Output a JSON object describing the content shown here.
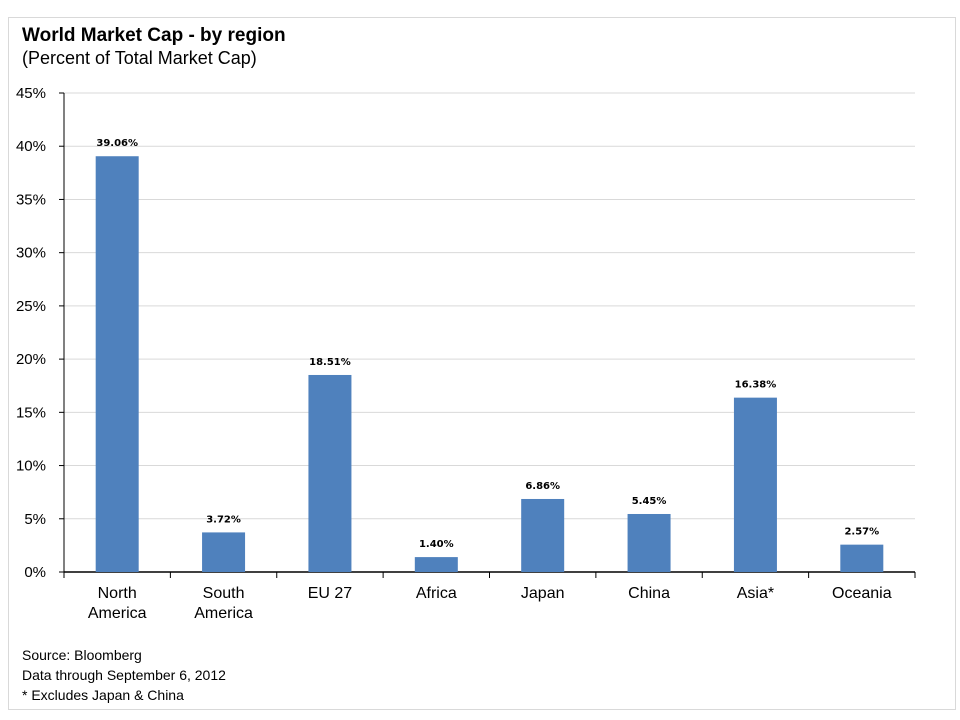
{
  "header": {
    "title": "World Market Cap - by region",
    "subtitle": "(Percent of Total Market Cap)"
  },
  "footer": {
    "source": "Source: Bloomberg",
    "data_through": "Data through September 6, 2012",
    "note": "* Excludes Japan & China"
  },
  "colors": {
    "bar": "#4f81bd",
    "grid": "#d9d9d9",
    "axis": "#000000"
  },
  "chart_data": {
    "type": "bar",
    "title": "World Market Cap - by region",
    "subtitle": "(Percent of Total Market Cap)",
    "categories": [
      [
        "North",
        "America"
      ],
      [
        "South",
        "America"
      ],
      [
        "EU 27"
      ],
      [
        "Africa"
      ],
      [
        "Japan"
      ],
      [
        "China"
      ],
      [
        "Asia*"
      ],
      [
        "Oceania"
      ]
    ],
    "values": [
      39.06,
      3.72,
      18.51,
      1.4,
      6.86,
      5.45,
      16.38,
      2.57
    ],
    "data_labels": [
      "39.06%",
      "3.72%",
      "18.51%",
      "1.40%",
      "6.86%",
      "5.45%",
      "16.38%",
      "2.57%"
    ],
    "y_ticks": [
      0,
      5,
      10,
      15,
      20,
      25,
      30,
      35,
      40,
      45
    ],
    "y_tick_labels": [
      "0%",
      "5%",
      "10%",
      "15%",
      "20%",
      "25%",
      "30%",
      "35%",
      "40%",
      "45%"
    ],
    "ylim": [
      0,
      45
    ],
    "grid": true,
    "legend": "none"
  }
}
